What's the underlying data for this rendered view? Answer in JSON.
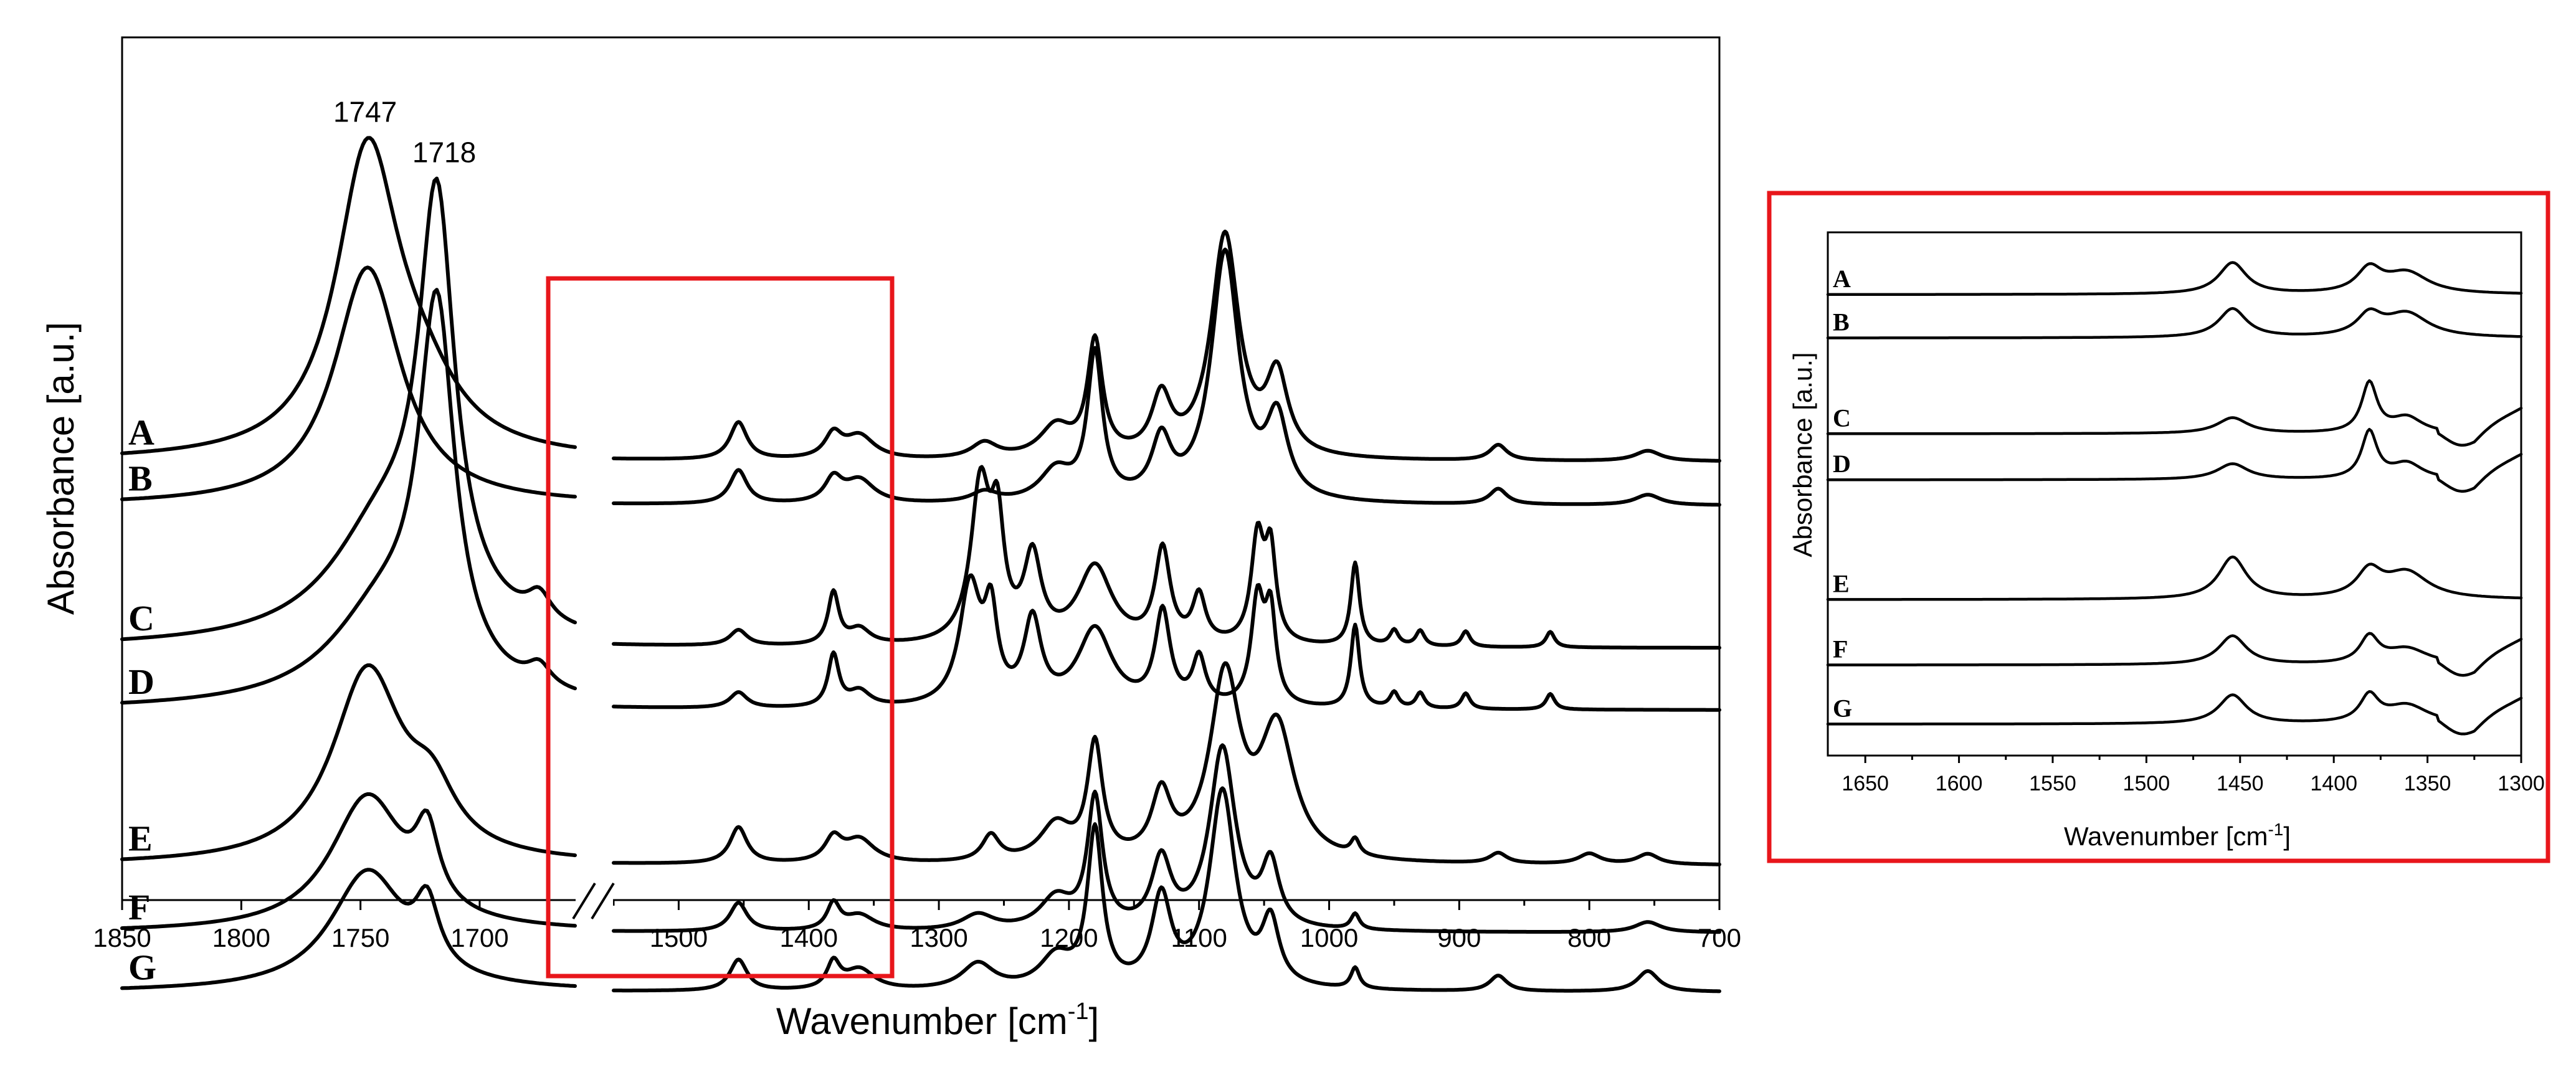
{
  "colors": {
    "frame": "#000000",
    "trace": "#000000",
    "highlight": "#e8161b",
    "background": "#ffffff"
  },
  "chart_data": [
    {
      "type": "line",
      "panel": "main",
      "xlabel": "Wavenumber [cm",
      "xlabel_sup": "-1",
      "xlabel_close": "]",
      "ylabel": "Absorbance [a.u.]",
      "xlim": [
        1850,
        700
      ],
      "axis_break": [
        1550,
        1505
      ],
      "xticks": [
        "1850",
        "1800",
        "1750",
        "1700",
        "1500",
        "1400",
        "1300",
        "1200",
        "1100",
        "1000",
        "900",
        "800",
        "700"
      ],
      "xtick_values": [
        1850,
        1800,
        1750,
        1700,
        1500,
        1400,
        1300,
        1200,
        1100,
        1000,
        900,
        800,
        700
      ],
      "highlight_region": [
        1660,
        1300
      ],
      "annotations": [
        {
          "label": "1747",
          "x": 1747
        },
        {
          "label": "1718",
          "x": 1718
        }
      ],
      "series": [
        {
          "name": "A",
          "baseline": 0.82,
          "peaks": [
            [
              1747,
              0.58,
              16
            ],
            [
              1725,
              0.1,
              20
            ],
            [
              1454,
              0.072,
              8
            ],
            [
              1381,
              0.045,
              8
            ],
            [
              1361,
              0.045,
              14
            ],
            [
              1265,
              0.03,
              12
            ],
            [
              1210,
              0.06,
              15
            ],
            [
              1180,
              0.22,
              7
            ],
            [
              1129,
              0.11,
              9
            ],
            [
              1080,
              0.43,
              13
            ],
            [
              1040,
              0.15,
              10
            ],
            [
              870,
              0.03,
              8
            ],
            [
              755,
              0.02,
              12
            ]
          ]
        },
        {
          "name": "B",
          "baseline": 0.905,
          "peaks": [
            [
              1747,
              0.46,
              17
            ],
            [
              1454,
              0.065,
              8
            ],
            [
              1381,
              0.045,
              8
            ],
            [
              1361,
              0.045,
              14
            ],
            [
              1265,
              0.02,
              12
            ],
            [
              1210,
              0.06,
              15
            ],
            [
              1180,
              0.28,
              7
            ],
            [
              1129,
              0.11,
              9
            ],
            [
              1080,
              0.48,
              13
            ],
            [
              1040,
              0.15,
              10
            ],
            [
              870,
              0.03,
              8
            ],
            [
              755,
              0.02,
              12
            ]
          ]
        },
        {
          "name": "C",
          "baseline": 1.18,
          "peaks": [
            [
              1740,
              0.22,
              28
            ],
            [
              1718,
              0.77,
              9
            ],
            [
              1675,
              0.05,
              6
            ],
            [
              1454,
              0.03,
              8
            ],
            [
              1381,
              0.1,
              5
            ],
            [
              1361,
              0.03,
              10
            ],
            [
              1268,
              0.3,
              9
            ],
            [
              1255,
              0.2,
              6
            ],
            [
              1228,
              0.16,
              8
            ],
            [
              1180,
              0.15,
              16
            ],
            [
              1128,
              0.18,
              7
            ],
            [
              1100,
              0.09,
              6
            ],
            [
              1055,
              0.2,
              6
            ],
            [
              1045,
              0.17,
              5
            ],
            [
              980,
              0.16,
              4
            ],
            [
              950,
              0.03,
              4
            ],
            [
              930,
              0.03,
              4
            ],
            [
              895,
              0.03,
              4
            ],
            [
              830,
              0.03,
              4
            ]
          ]
        },
        {
          "name": "D",
          "baseline": 1.3,
          "peaks": [
            [
              1740,
              0.18,
              28
            ],
            [
              1718,
              0.7,
              9
            ],
            [
              1675,
              0.04,
              6
            ],
            [
              1454,
              0.03,
              8
            ],
            [
              1381,
              0.1,
              5
            ],
            [
              1361,
              0.03,
              10
            ],
            [
              1276,
              0.23,
              10
            ],
            [
              1260,
              0.16,
              6
            ],
            [
              1228,
              0.16,
              8
            ],
            [
              1180,
              0.15,
              16
            ],
            [
              1128,
              0.18,
              7
            ],
            [
              1100,
              0.09,
              6
            ],
            [
              1055,
              0.2,
              6
            ],
            [
              1045,
              0.17,
              5
            ],
            [
              980,
              0.16,
              4
            ],
            [
              950,
              0.03,
              4
            ],
            [
              930,
              0.03,
              4
            ],
            [
              895,
              0.03,
              4
            ],
            [
              830,
              0.03,
              4
            ]
          ]
        },
        {
          "name": "E",
          "baseline": 1.6,
          "peaks": [
            [
              1747,
              0.37,
              18
            ],
            [
              1720,
              0.1,
              12
            ],
            [
              1454,
              0.07,
              8
            ],
            [
              1381,
              0.045,
              8
            ],
            [
              1361,
              0.045,
              14
            ],
            [
              1260,
              0.05,
              8
            ],
            [
              1210,
              0.07,
              15
            ],
            [
              1180,
              0.22,
              7
            ],
            [
              1129,
              0.12,
              9
            ],
            [
              1080,
              0.35,
              14
            ],
            [
              1040,
              0.25,
              16
            ],
            [
              980,
              0.03,
              4
            ],
            [
              870,
              0.02,
              8
            ],
            [
              800,
              0.02,
              10
            ],
            [
              755,
              0.02,
              10
            ]
          ]
        },
        {
          "name": "F",
          "baseline": 1.73,
          "peaks": [
            [
              1747,
              0.26,
              19
            ],
            [
              1722,
              0.14,
              6
            ],
            [
              1454,
              0.055,
              8
            ],
            [
              1381,
              0.05,
              6
            ],
            [
              1361,
              0.03,
              14
            ],
            [
              1270,
              0.03,
              15
            ],
            [
              1210,
              0.06,
              15
            ],
            [
              1180,
              0.25,
              7
            ],
            [
              1129,
              0.13,
              9
            ],
            [
              1082,
              0.35,
              12
            ],
            [
              1045,
              0.12,
              8
            ],
            [
              980,
              0.03,
              4
            ],
            [
              755,
              0.02,
              12
            ]
          ]
        },
        {
          "name": "G",
          "baseline": 1.845,
          "peaks": [
            [
              1747,
              0.23,
              19
            ],
            [
              1722,
              0.12,
              6
            ],
            [
              1454,
              0.06,
              8
            ],
            [
              1381,
              0.05,
              6
            ],
            [
              1361,
              0.04,
              14
            ],
            [
              1270,
              0.05,
              15
            ],
            [
              1210,
              0.06,
              15
            ],
            [
              1180,
              0.3,
              7
            ],
            [
              1129,
              0.17,
              9
            ],
            [
              1082,
              0.38,
              12
            ],
            [
              1045,
              0.12,
              8
            ],
            [
              980,
              0.04,
              4
            ],
            [
              870,
              0.03,
              8
            ],
            [
              755,
              0.04,
              10
            ]
          ]
        }
      ]
    },
    {
      "type": "line",
      "panel": "inset",
      "xlabel": "Wavenumber [cm",
      "xlabel_sup": "-1",
      "xlabel_close": "]",
      "ylabel": "Absorbance [a.u.]",
      "xlim": [
        1670,
        1300
      ],
      "xticks": [
        "1650",
        "1600",
        "1550",
        "1500",
        "1450",
        "1400",
        "1350",
        "1300"
      ],
      "xtick_values": [
        1650,
        1600,
        1550,
        1500,
        1450,
        1400,
        1350,
        1300
      ],
      "series": [
        {
          "name": "A",
          "baseline": 0.119,
          "peaks": [
            [
              1454,
              0.06,
              9
            ],
            [
              1381,
              0.045,
              8
            ],
            [
              1361,
              0.04,
              14
            ]
          ]
        },
        {
          "name": "B",
          "baseline": 0.202,
          "peaks": [
            [
              1454,
              0.055,
              9
            ],
            [
              1381,
              0.04,
              8
            ],
            [
              1361,
              0.045,
              14
            ]
          ]
        },
        {
          "name": "C",
          "baseline": 0.385,
          "peaks": [
            [
              1454,
              0.03,
              10
            ],
            [
              1381,
              0.095,
              5
            ],
            [
              1361,
              0.03,
              10
            ]
          ]
        },
        {
          "name": "D",
          "baseline": 0.473,
          "peaks": [
            [
              1454,
              0.03,
              10
            ],
            [
              1381,
              0.09,
              5
            ],
            [
              1361,
              0.03,
              10
            ]
          ]
        },
        {
          "name": "E",
          "baseline": 0.702,
          "peaks": [
            [
              1454,
              0.08,
              9
            ],
            [
              1381,
              0.05,
              8
            ],
            [
              1361,
              0.05,
              14
            ]
          ]
        },
        {
          "name": "F",
          "baseline": 0.827,
          "peaks": [
            [
              1454,
              0.055,
              9
            ],
            [
              1381,
              0.05,
              6
            ],
            [
              1361,
              0.03,
              14
            ]
          ]
        },
        {
          "name": "G",
          "baseline": 0.94,
          "peaks": [
            [
              1454,
              0.055,
              9
            ],
            [
              1381,
              0.05,
              6
            ],
            [
              1361,
              0.035,
              14
            ]
          ]
        }
      ]
    }
  ]
}
